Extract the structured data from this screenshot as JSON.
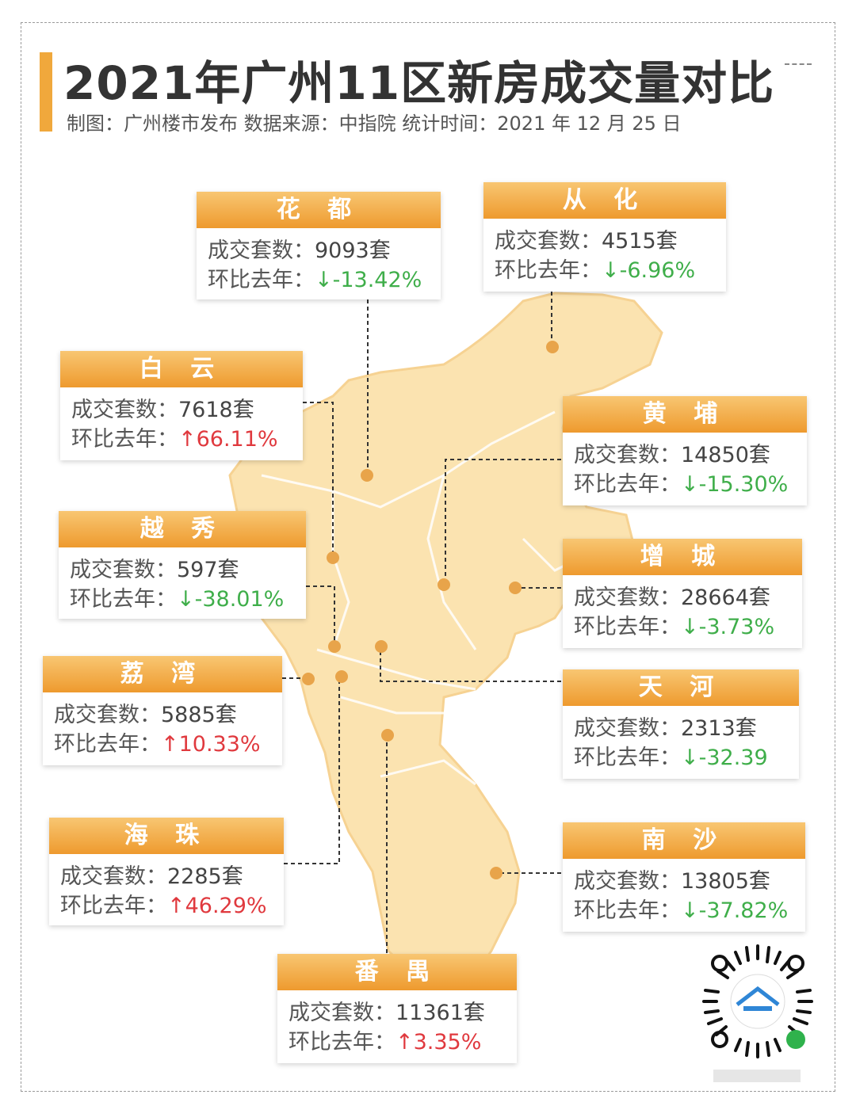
{
  "title": "2021年广州11区新房成交量对比",
  "subtitle": "制图：广州楼市发布 数据来源：中指院 统计时间：2021 年 12 月 25 日",
  "labels": {
    "deals": "成交套数：",
    "yoy": "环比去年："
  },
  "colors": {
    "accent": "#f0a83c",
    "down": "#3fae4a",
    "up": "#e0393e",
    "map": "#fbe3b0"
  },
  "districts": [
    {
      "name": "花 都",
      "deals": "9093套",
      "yoy": "↓-13.42%",
      "trend": "down"
    },
    {
      "name": "从 化",
      "deals": "4515套",
      "yoy": "↓-6.96%",
      "trend": "down"
    },
    {
      "name": "白 云",
      "deals": "7618套",
      "yoy": "↑66.11%",
      "trend": "up"
    },
    {
      "name": "黄 埔",
      "deals": "14850套",
      "yoy": "↓-15.30%",
      "trend": "down"
    },
    {
      "name": "越 秀",
      "deals": "597套",
      "yoy": "↓-38.01%",
      "trend": "down"
    },
    {
      "name": "增 城",
      "deals": "28664套",
      "yoy": "↓-3.73%",
      "trend": "down"
    },
    {
      "name": "荔 湾",
      "deals": "5885套",
      "yoy": "↑10.33%",
      "trend": "up"
    },
    {
      "name": "天 河",
      "deals": "2313套",
      "yoy": "↓-32.39",
      "trend": "down"
    },
    {
      "name": "海 珠",
      "deals": "2285套",
      "yoy": "↑46.29%",
      "trend": "up"
    },
    {
      "name": "南 沙",
      "deals": "13805套",
      "yoy": "↓-37.82%",
      "trend": "down"
    },
    {
      "name": "番 禺",
      "deals": "11361套",
      "yoy": "↑3.35%",
      "trend": "up"
    }
  ]
}
